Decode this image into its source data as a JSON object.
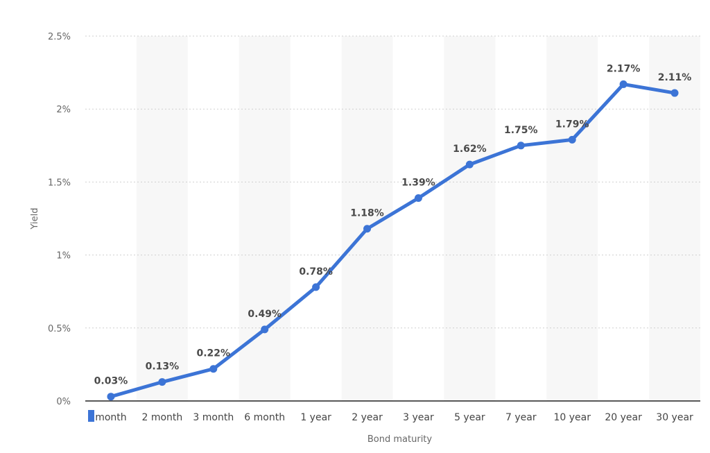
{
  "chart_data": {
    "type": "line",
    "categories": [
      "month",
      "2 month",
      "3 month",
      "6 month",
      "1 year",
      "2 year",
      "3 year",
      "5 year",
      "7 year",
      "10 year",
      "20 year",
      "30 year"
    ],
    "series": [
      {
        "values": [
          0.03,
          0.13,
          0.22,
          0.49,
          0.78,
          1.18,
          1.39,
          1.62,
          1.75,
          1.79,
          2.17,
          2.11
        ],
        "data_labels": [
          "0.03%",
          "0.13%",
          "0.22%",
          "0.49%",
          "0.78%",
          "1.18%",
          "1.39%",
          "1.62%",
          "1.75%",
          "1.79%",
          "2.17%",
          "2.11%"
        ]
      }
    ],
    "xlabel": "Bond maturity",
    "ylabel": "Yield",
    "ylim": [
      0,
      2.5
    ],
    "yticks": [
      0,
      0.5,
      1,
      1.5,
      2,
      2.5
    ],
    "ytick_labels": [
      "0%",
      "0.5%",
      "1%",
      "1.5%",
      "2%",
      "2.5%"
    ],
    "grid": true,
    "legend": "none",
    "colors": {
      "line": "#3c74d6",
      "bands": "#f7f7f7"
    }
  }
}
